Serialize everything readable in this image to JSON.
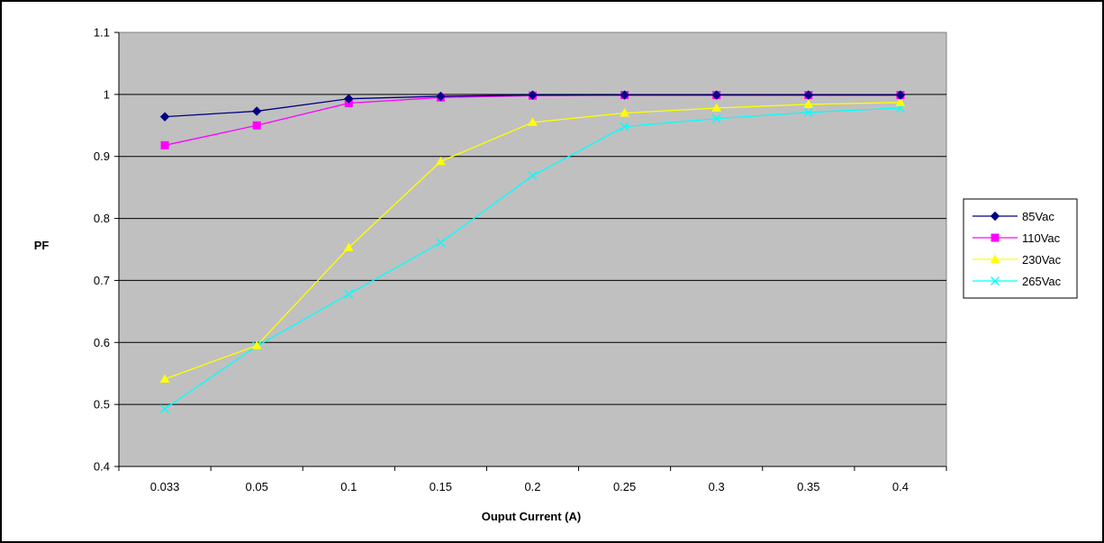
{
  "chart_data": {
    "type": "line",
    "title": "",
    "xlabel": "Ouput Current (A)",
    "ylabel": "PF",
    "categories": [
      "0.033",
      "0.05",
      "0.1",
      "0.15",
      "0.2",
      "0.25",
      "0.3",
      "0.35",
      "0.4"
    ],
    "ylim": [
      0.4,
      1.1
    ],
    "yticks": [
      "0.4",
      "0.5",
      "0.6",
      "0.7",
      "0.8",
      "0.9",
      "1",
      "1.1"
    ],
    "grid": "horizontal",
    "plot_background": "#C0C0C0",
    "legend_position": "right",
    "series": [
      {
        "name": "85Vac",
        "color": "#000080",
        "marker": "diamond",
        "values": [
          0.964,
          0.973,
          0.993,
          0.997,
          0.999,
          0.999,
          0.999,
          0.999,
          0.999
        ]
      },
      {
        "name": "110Vac",
        "color": "#FF00FF",
        "marker": "square",
        "values": [
          0.918,
          0.95,
          0.986,
          0.995,
          0.998,
          0.999,
          0.999,
          0.999,
          0.999
        ]
      },
      {
        "name": "230Vac",
        "color": "#FFFF00",
        "marker": "triangle",
        "values": [
          0.541,
          0.595,
          0.753,
          0.892,
          0.955,
          0.97,
          0.978,
          0.984,
          0.987
        ]
      },
      {
        "name": "265Vac",
        "color": "#00FFFF",
        "marker": "x",
        "values": [
          0.493,
          0.594,
          0.678,
          0.761,
          0.869,
          0.948,
          0.961,
          0.971,
          0.978
        ]
      }
    ]
  }
}
